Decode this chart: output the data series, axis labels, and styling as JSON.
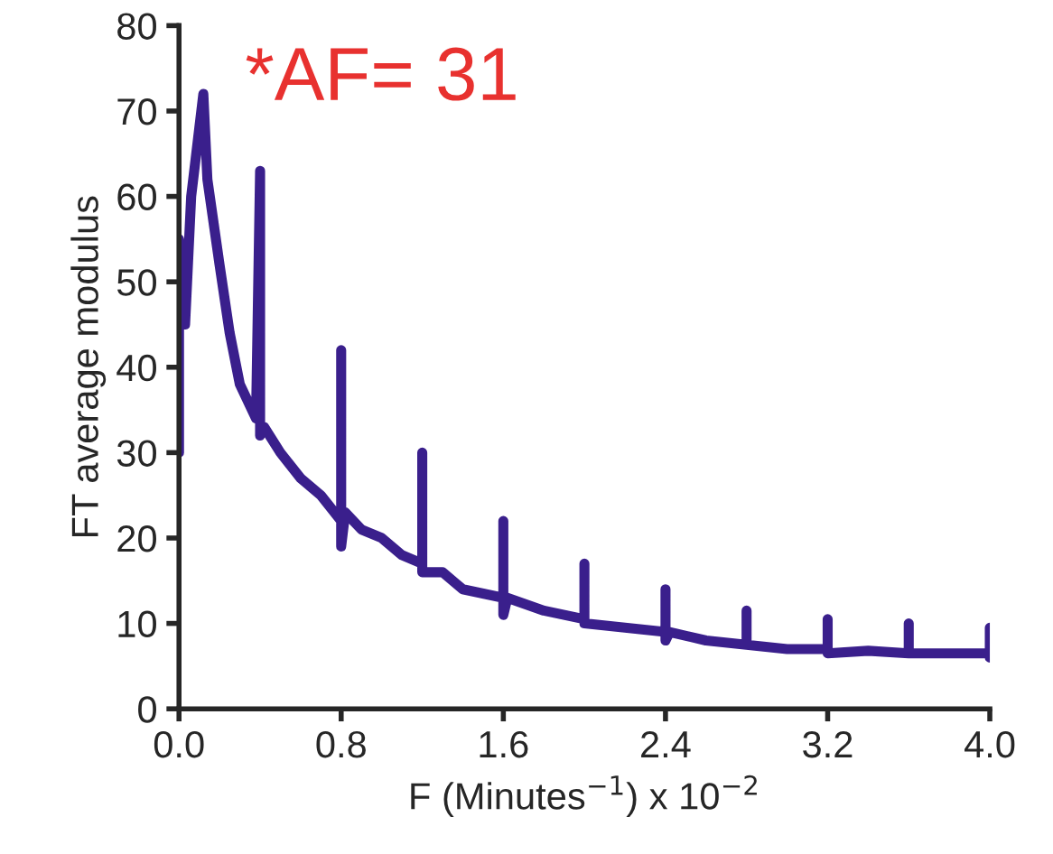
{
  "chart_data": {
    "type": "line",
    "xlabel": "F (Minutes$^{−1}$) x 10$^{−2}$",
    "ylabel": "FT average modulus",
    "xlim": [
      0,
      4.0
    ],
    "ylim": [
      0,
      80
    ],
    "xticks": [
      {
        "value": 0,
        "label": "0.0"
      },
      0.8,
      1.6,
      2.4,
      3.2,
      {
        "value": 4.0,
        "label": "4.0"
      }
    ],
    "yticks": [
      0,
      10,
      20,
      30,
      40,
      50,
      60,
      70,
      80
    ],
    "grid": false,
    "marker": "none",
    "line_style": "solid",
    "annotations": [
      {
        "text": "*AF= 31",
        "x": 0.4,
        "y": 63
      }
    ],
    "series": [
      {
        "color": "#3a1f8c",
        "x": [
          0.0,
          0.0,
          0.03,
          0.06,
          0.1,
          0.12,
          0.14,
          0.2,
          0.25,
          0.3,
          0.38,
          0.4,
          0.4,
          0.42,
          0.5,
          0.6,
          0.7,
          0.8,
          0.8,
          0.8,
          0.82,
          0.9,
          1.0,
          1.1,
          1.2,
          1.2,
          1.2,
          1.3,
          1.4,
          1.5,
          1.6,
          1.6,
          1.6,
          1.62,
          1.8,
          2.0,
          2.0,
          2.0,
          2.2,
          2.4,
          2.4,
          2.4,
          2.42,
          2.6,
          2.8,
          2.8,
          2.8,
          3.0,
          3.2,
          3.2,
          3.2,
          3.4,
          3.6,
          3.6,
          3.6,
          3.8,
          4.0,
          4.0,
          4.0
        ],
        "values": [
          30,
          55,
          45,
          60,
          68,
          72,
          62,
          52,
          44,
          38,
          34,
          63,
          32,
          33,
          30,
          27,
          25,
          22,
          42,
          19,
          23,
          21,
          20,
          18,
          17,
          30,
          16,
          16,
          14,
          13.5,
          13,
          22,
          11,
          13,
          11.5,
          10.5,
          17,
          10,
          9.5,
          9,
          14,
          8,
          9,
          8,
          7.5,
          11.5,
          7.5,
          7,
          7,
          10.5,
          6.5,
          6.8,
          6.5,
          10,
          6.5,
          6.5,
          6.5,
          9.5,
          6
        ]
      }
    ]
  }
}
